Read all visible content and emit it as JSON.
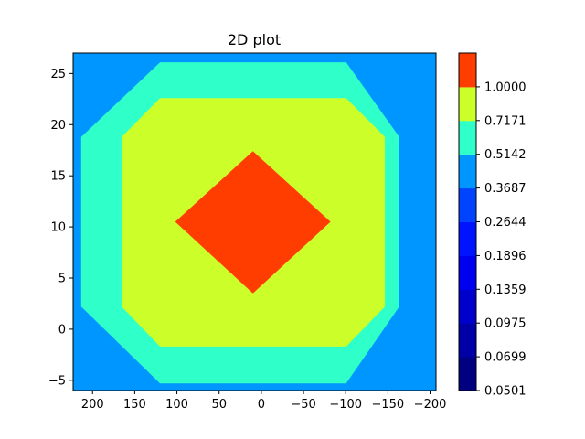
{
  "chart_data": {
    "type": "contour",
    "title": "2D plot",
    "xlabel": "",
    "ylabel": "",
    "x_inverted": true,
    "xlim": [
      223,
      -207
    ],
    "ylim": [
      -6,
      27
    ],
    "x_ticks": [
      200,
      150,
      100,
      50,
      0,
      -50,
      -100,
      -150,
      -200
    ],
    "x_tick_labels": [
      "200",
      "150",
      "100",
      "50",
      "0",
      "−50",
      "−100",
      "−150",
      "−200"
    ],
    "y_ticks": [
      -5,
      0,
      5,
      10,
      15,
      20,
      25
    ],
    "y_tick_labels": [
      "−5",
      "0",
      "5",
      "10",
      "15",
      "20",
      "25"
    ],
    "background_fill": "#0096ff",
    "regions": [
      {
        "level_range": [
          0.3687,
          0.5142
        ],
        "color": "#2fffc8",
        "polygon": [
          [
            120.0,
            26.1
          ],
          [
            -100.5,
            26.1
          ],
          [
            -163.5,
            18.8
          ],
          [
            -163.5,
            2.2
          ],
          [
            -100.5,
            -5.3
          ],
          [
            120.0,
            -5.3
          ],
          [
            213.5,
            2.2
          ],
          [
            213.5,
            18.8
          ]
        ]
      },
      {
        "level_range": [
          0.5142,
          0.7171
        ],
        "color": "#ccff2a",
        "polygon": [
          [
            120.0,
            22.6
          ],
          [
            -100.5,
            22.6
          ],
          [
            -146.5,
            18.8
          ],
          [
            -146.5,
            2.2
          ],
          [
            -100.5,
            -1.7
          ],
          [
            120.0,
            -1.7
          ],
          [
            165.5,
            2.2
          ],
          [
            165.5,
            18.8
          ]
        ]
      },
      {
        "level_range": [
          0.7171,
          1.0
        ],
        "color": "#ff3d00",
        "polygon": [
          [
            10.0,
            17.4
          ],
          [
            -82.0,
            10.5
          ],
          [
            10.0,
            3.5
          ],
          [
            102.0,
            10.5
          ]
        ]
      }
    ],
    "colorbar": {
      "levels": [
        "0.0501",
        "0.0699",
        "0.0975",
        "0.1359",
        "0.1896",
        "0.2644",
        "0.3687",
        "0.5142",
        "0.7171",
        "1.0000"
      ],
      "colors": [
        "#000080",
        "#0000a6",
        "#0000cd",
        "#0000f1",
        "#0014ff",
        "#0044ff",
        "#0096ff",
        "#2fffc8",
        "#ccff2a",
        "#ff3d00"
      ]
    }
  }
}
